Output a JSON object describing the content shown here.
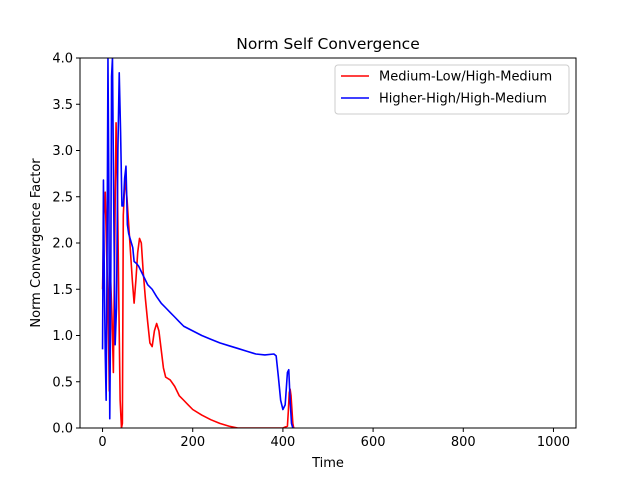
{
  "chart_data": {
    "type": "line",
    "title": "Norm Self Convergence",
    "xlabel": "Time",
    "ylabel": "Norm Convergence Factor",
    "xlim": [
      -50,
      1050
    ],
    "ylim": [
      0,
      4.0
    ],
    "xticks": [
      0,
      200,
      400,
      600,
      800,
      1000
    ],
    "yticks": [
      0.0,
      0.5,
      1.0,
      1.5,
      2.0,
      2.5,
      3.0,
      3.5,
      4.0
    ],
    "grid": false,
    "legend_position": "top-right",
    "series": [
      {
        "name": "Medium-Low/High-Medium",
        "color": "#ff0000",
        "x": [
          0,
          3,
          6,
          9,
          12,
          15,
          18,
          21,
          24,
          27,
          30,
          33,
          36,
          39,
          42,
          44,
          46,
          50,
          54,
          58,
          62,
          66,
          70,
          74,
          78,
          82,
          86,
          90,
          95,
          100,
          105,
          110,
          115,
          120,
          125,
          130,
          135,
          140,
          150,
          160,
          170,
          180,
          190,
          200,
          220,
          240,
          260,
          280,
          300,
          320,
          340,
          360,
          380,
          400,
          410,
          412,
          414,
          416,
          418,
          420,
          422,
          424,
          426
        ],
        "y": [
          1.5,
          2.3,
          2.55,
          1.9,
          1.4,
          0.4,
          1.6,
          1.2,
          0.6,
          2.0,
          3.3,
          2.6,
          1.4,
          0.3,
          0.0,
          0.05,
          2.3,
          2.7,
          2.5,
          2.2,
          1.9,
          1.6,
          1.35,
          1.6,
          1.9,
          2.05,
          2.0,
          1.7,
          1.4,
          1.15,
          0.92,
          0.88,
          1.05,
          1.13,
          1.05,
          0.85,
          0.65,
          0.55,
          0.52,
          0.45,
          0.35,
          0.3,
          0.25,
          0.2,
          0.14,
          0.09,
          0.05,
          0.02,
          0.0,
          0.0,
          0.0,
          0.0,
          0.0,
          0.0,
          0.02,
          0.18,
          0.38,
          0.42,
          0.35,
          0.2,
          0.05,
          0.0,
          0.0
        ]
      },
      {
        "name": "Higher-High/High-Medium",
        "color": "#0000ff",
        "x": [
          0,
          2,
          4,
          6,
          8,
          10,
          12,
          14,
          16,
          18,
          20,
          22,
          25,
          28,
          31,
          34,
          37,
          40,
          43,
          46,
          49,
          52,
          55,
          58,
          61,
          64,
          67,
          70,
          75,
          80,
          85,
          90,
          95,
          100,
          110,
          120,
          130,
          140,
          150,
          160,
          170,
          180,
          200,
          220,
          240,
          260,
          280,
          300,
          320,
          340,
          360,
          380,
          385,
          390,
          395,
          400,
          405,
          410,
          413,
          416,
          419,
          422
        ],
        "y": [
          0.85,
          2.68,
          1.6,
          0.8,
          0.3,
          1.8,
          4.0,
          2.6,
          0.1,
          1.3,
          3.8,
          4.0,
          2.3,
          0.9,
          1.3,
          3.0,
          3.84,
          3.2,
          2.4,
          2.4,
          2.7,
          2.83,
          2.2,
          2.1,
          2.05,
          2.0,
          1.95,
          1.8,
          1.78,
          1.75,
          1.7,
          1.65,
          1.6,
          1.55,
          1.5,
          1.42,
          1.35,
          1.3,
          1.25,
          1.2,
          1.15,
          1.1,
          1.05,
          1.0,
          0.96,
          0.92,
          0.89,
          0.86,
          0.83,
          0.8,
          0.79,
          0.8,
          0.78,
          0.55,
          0.3,
          0.2,
          0.25,
          0.6,
          0.63,
          0.3,
          0.05,
          0.0
        ]
      }
    ]
  }
}
